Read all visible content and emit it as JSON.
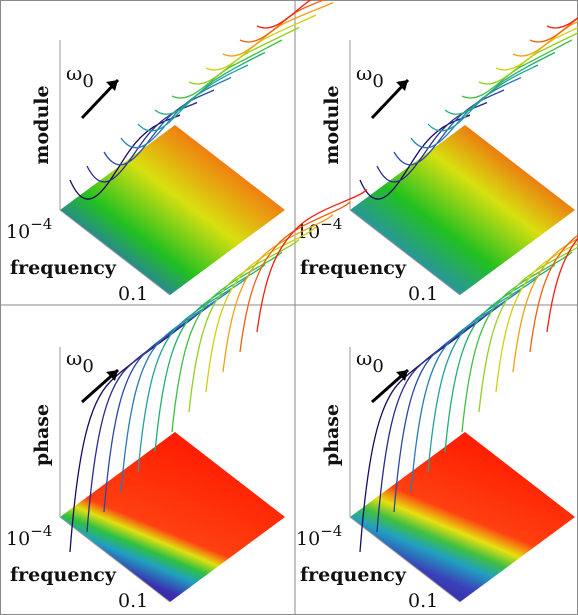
{
  "panels": [
    {
      "id": "top-left",
      "ylabel": "module",
      "xlabel": "frequency",
      "tick_low": "10",
      "tick_low_exp": "−4",
      "tick_high": "0.1",
      "omega": "ω",
      "omega_sub": "0",
      "kind": "module",
      "variant": 0
    },
    {
      "id": "top-right",
      "ylabel": "module",
      "xlabel": "frequency",
      "tick_low": "10",
      "tick_low_exp": "−4",
      "tick_high": "0.1",
      "omega": "ω",
      "omega_sub": "0",
      "kind": "module",
      "variant": 1
    },
    {
      "id": "bottom-left",
      "ylabel": "phase",
      "xlabel": "frequency",
      "tick_low": "10",
      "tick_low_exp": "−4",
      "tick_high": "0.1",
      "omega": "ω",
      "omega_sub": "0",
      "kind": "phase",
      "variant": 0
    },
    {
      "id": "bottom-right",
      "ylabel": "phase",
      "xlabel": "frequency",
      "tick_low": "10",
      "tick_low_exp": "−4",
      "tick_high": "0.1",
      "omega": "ω",
      "omega_sub": "0",
      "kind": "phase",
      "variant": 1
    }
  ],
  "colors": {
    "surface_high": "#ff1a00",
    "surface_mid": "#22c020",
    "surface_low": "#2a1aa0",
    "curve_sequence": [
      "#1a0a60",
      "#2a2a90",
      "#2a4aa8",
      "#2a7ab8",
      "#20a0a0",
      "#20b070",
      "#40c040",
      "#90d020",
      "#d0d010",
      "#f0a010",
      "#f06010",
      "#f02010"
    ]
  }
}
